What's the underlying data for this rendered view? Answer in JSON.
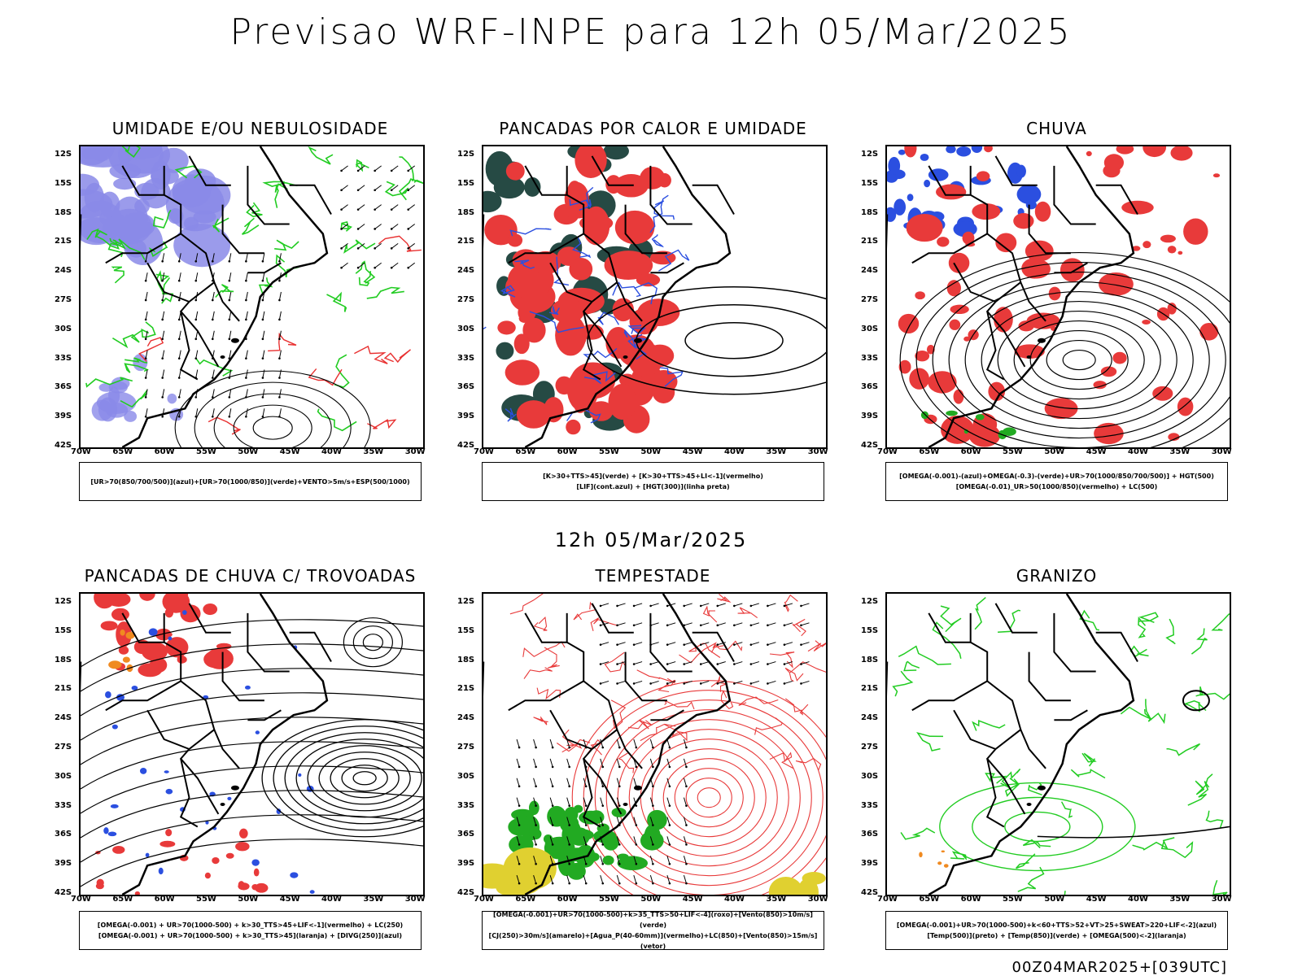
{
  "title": "Previsao WRF-INPE  para 12h 05/Mar/2025",
  "mid_title": "12h 05/Mar/2025",
  "footer": "00Z04MAR2025+[039UTC]",
  "axes": {
    "lat_labels": [
      "12S",
      "15S",
      "18S",
      "21S",
      "24S",
      "27S",
      "30S",
      "33S",
      "36S",
      "39S",
      "42S"
    ],
    "lon_labels": [
      "70W",
      "65W",
      "60W",
      "55W",
      "50W",
      "45W",
      "40W",
      "35W",
      "30W"
    ]
  },
  "panels": [
    {
      "title": "UMIDADE E/OU NEBULOSIDADE",
      "legend": [
        "[UR>70(850/700/500)](azul)+[UR>70(1000/850)](verde)+VENTO>5m/s+ESP(500/1000)"
      ],
      "colors": [
        "#8a8ae8",
        "#22cc22",
        "#e83030"
      ]
    },
    {
      "title": "PANCADAS POR CALOR E UMIDADE",
      "legend": [
        "[K>30+TTS>45](verde) + [K>30+TTS>45+LI<-1](vermelho)",
        "[LIF](cont.azul) + [HGT(300)](linha preta)"
      ],
      "colors": [
        "#e83a3a",
        "#264a44",
        "#2b4fe0"
      ]
    },
    {
      "title": "CHUVA",
      "legend": [
        "[OMEGA(-0.001)-(azul)+OMEGA(-0.3)-(verde)+UR>70(1000/850/700/500)] + HGT(500)",
        "[OMEGA(-0.01)_UR>50(1000/850)(vermelho) + LC(500)"
      ],
      "colors": [
        "#e83a3a",
        "#2b4fe0",
        "#22aa22"
      ]
    },
    {
      "title": "PANCADAS DE CHUVA C/ TROVOADAS",
      "legend": [
        "[OMEGA(-0.001) + UR>70(1000-500) + k>30_TTS>45+LIF<-1](vermelho) + LC(250)",
        "[OMEGA(-0.001) + UR>70(1000-500) + k>30_TTS>45](laranja) + [DIVG(250)](azul)"
      ],
      "colors": [
        "#e83a3a",
        "#2b4fe0",
        "#f08a20"
      ]
    },
    {
      "title": "TEMPESTADE",
      "legend": [
        "[OMEGA(-0.001)+UR>70(1000-500)+k>35_TTS>50+LIF<-4](roxo)+[Vento(850)>10m/s](verde)",
        "[CJ(250)>30m/s](amarelo)+[Agua_P(40-60mm)](vermelho)+LC(850)+[Vento(850)>15m/s](vetor)"
      ],
      "colors": [
        "#e83a3a",
        "#22aa22",
        "#e0d030"
      ]
    },
    {
      "title": "GRANIZO",
      "legend": [
        "[OMEGA(-0.001)+UR>70(1000-500)+k<60+TTS>52+VT>25+SWEAT>220+LIF<-2](azul)",
        "[Temp(500)](preto) + [Temp(850)](verde) + [OMEGA(500)<-2](laranja)"
      ],
      "colors": [
        "#22cc22",
        "#f08a20",
        "#2b4fe0"
      ]
    }
  ]
}
